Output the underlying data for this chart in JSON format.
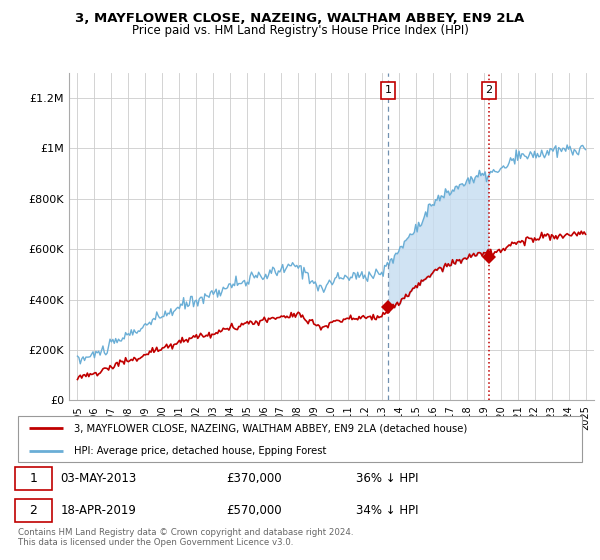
{
  "title1": "3, MAYFLOWER CLOSE, NAZEING, WALTHAM ABBEY, EN9 2LA",
  "title2": "Price paid vs. HM Land Registry's House Price Index (HPI)",
  "ylabel_ticks": [
    "£0",
    "£200K",
    "£400K",
    "£600K",
    "£800K",
    "£1M",
    "£1.2M"
  ],
  "ytick_vals": [
    0,
    200000,
    400000,
    600000,
    800000,
    1000000,
    1200000
  ],
  "ylim": [
    0,
    1300000
  ],
  "xlim_start": 1994.5,
  "xlim_end": 2025.5,
  "hpi_color": "#6aaed6",
  "hpi_fill_color": "#c5dcf0",
  "price_color": "#c00000",
  "marker1_date": 2013.33,
  "marker1_price": 370000,
  "marker2_date": 2019.29,
  "marker2_price": 570000,
  "legend_label1": "3, MAYFLOWER CLOSE, NAZEING, WALTHAM ABBEY, EN9 2LA (detached house)",
  "legend_label2": "HPI: Average price, detached house, Epping Forest",
  "footnote": "Contains HM Land Registry data © Crown copyright and database right 2024.\nThis data is licensed under the Open Government Licence v3.0.",
  "background_color": "#ffffff"
}
